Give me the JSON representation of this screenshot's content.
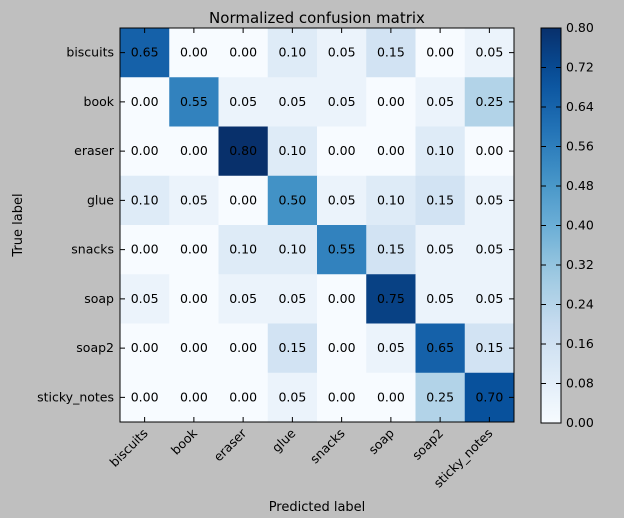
{
  "chart_data": {
    "type": "heatmap",
    "title": "Normalized confusion matrix",
    "xlabel": "Predicted label",
    "ylabel": "True label",
    "x_categories": [
      "biscuits",
      "book",
      "eraser",
      "glue",
      "snacks",
      "soap",
      "soap2",
      "sticky_notes"
    ],
    "y_categories": [
      "biscuits",
      "book",
      "eraser",
      "glue",
      "snacks",
      "soap",
      "soap2",
      "sticky_notes"
    ],
    "values": [
      [
        0.65,
        0.0,
        0.0,
        0.1,
        0.05,
        0.15,
        0.0,
        0.05
      ],
      [
        0.0,
        0.55,
        0.05,
        0.05,
        0.05,
        0.0,
        0.05,
        0.25
      ],
      [
        0.0,
        0.0,
        0.8,
        0.1,
        0.0,
        0.0,
        0.1,
        0.0
      ],
      [
        0.1,
        0.05,
        0.0,
        0.5,
        0.05,
        0.1,
        0.15,
        0.05
      ],
      [
        0.0,
        0.0,
        0.1,
        0.1,
        0.55,
        0.15,
        0.05,
        0.05
      ],
      [
        0.05,
        0.0,
        0.05,
        0.05,
        0.0,
        0.75,
        0.05,
        0.05
      ],
      [
        0.0,
        0.0,
        0.0,
        0.15,
        0.0,
        0.05,
        0.65,
        0.15
      ],
      [
        0.0,
        0.0,
        0.0,
        0.05,
        0.0,
        0.0,
        0.25,
        0.7
      ]
    ],
    "value_labels": [
      [
        "0.65",
        "0.00",
        "0.00",
        "0.10",
        "0.05",
        "0.15",
        "0.00",
        "0.05"
      ],
      [
        "0.00",
        "0.55",
        "0.05",
        "0.05",
        "0.05",
        "0.00",
        "0.05",
        "0.25"
      ],
      [
        "0.00",
        "0.00",
        "0.80",
        "0.10",
        "0.00",
        "0.00",
        "0.10",
        "0.00"
      ],
      [
        "0.10",
        "0.05",
        "0.00",
        "0.50",
        "0.05",
        "0.10",
        "0.15",
        "0.05"
      ],
      [
        "0.00",
        "0.00",
        "0.10",
        "0.10",
        "0.55",
        "0.15",
        "0.05",
        "0.05"
      ],
      [
        "0.05",
        "0.00",
        "0.05",
        "0.05",
        "0.00",
        "0.75",
        "0.05",
        "0.05"
      ],
      [
        "0.00",
        "0.00",
        "0.00",
        "0.15",
        "0.00",
        "0.05",
        "0.65",
        "0.15"
      ],
      [
        "0.00",
        "0.00",
        "0.00",
        "0.05",
        "0.00",
        "0.00",
        "0.25",
        "0.70"
      ]
    ],
    "colormap": "Blues",
    "color_range": [
      0.0,
      0.8
    ],
    "colorbar_ticks": [
      "0.00",
      "0.08",
      "0.16",
      "0.24",
      "0.32",
      "0.40",
      "0.48",
      "0.56",
      "0.64",
      "0.72",
      "0.80"
    ],
    "colorbar_tick_values": [
      0.0,
      0.08,
      0.16,
      0.24,
      0.32,
      0.4,
      0.48,
      0.56,
      0.64,
      0.72,
      0.8
    ],
    "text_color_dark_cells": "#ffffff",
    "text_color_light_cells": "#000000",
    "background_color": "#bfbfbf"
  }
}
